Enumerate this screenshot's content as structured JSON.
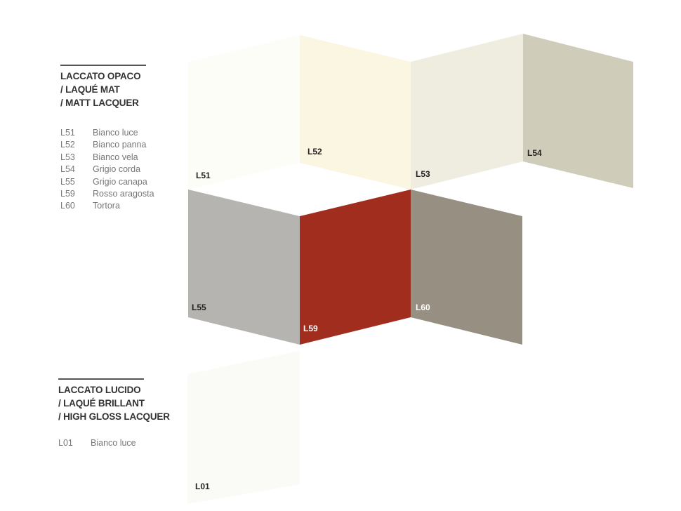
{
  "matt": {
    "title": [
      "LACCATO OPACO",
      "/ LAQUÉ MAT",
      "/ MATT LACQUER"
    ],
    "items": [
      {
        "code": "L51",
        "name": "Bianco luce"
      },
      {
        "code": "L52",
        "name": "Bianco panna"
      },
      {
        "code": "L53",
        "name": "Bianco vela"
      },
      {
        "code": "L54",
        "name": "Grigio corda"
      },
      {
        "code": "L55",
        "name": "Grigio canapa"
      },
      {
        "code": "L59",
        "name": "Rosso aragosta"
      },
      {
        "code": "L60",
        "name": "Tortora"
      }
    ]
  },
  "gloss": {
    "title": [
      "LACCATO LUCIDO",
      "/ LAQUÉ BRILLANT",
      "/ HIGH GLOSS LACQUER"
    ],
    "items": [
      {
        "code": "L01",
        "name": "Bianco luce"
      }
    ]
  },
  "swatches": [
    {
      "code": "L51",
      "color": "#fdfdf8",
      "label_color": "#222222"
    },
    {
      "code": "L52",
      "color": "#fbf6e2",
      "label_color": "#222222"
    },
    {
      "code": "L53",
      "color": "#eeede0",
      "label_color": "#222222"
    },
    {
      "code": "L54",
      "color": "#cfccba",
      "label_color": "#222222"
    },
    {
      "code": "L55",
      "color": "#b5b4b0",
      "label_color": "#222222"
    },
    {
      "code": "L59",
      "color": "#a12d1e",
      "label_color": "#ffffff"
    },
    {
      "code": "L60",
      "color": "#968f82",
      "label_color": "#ffffff"
    },
    {
      "code": "L01",
      "color": "#fafaf6",
      "label_color": "#222222"
    }
  ]
}
